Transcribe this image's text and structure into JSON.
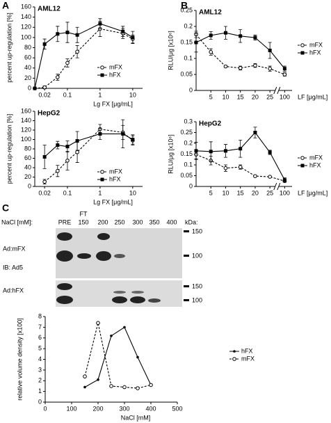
{
  "figure": {
    "panel_labels": [
      "A",
      "B",
      "C"
    ],
    "blot": {
      "nacl_label": "NaCl [mM]:",
      "ft_label": "FT",
      "lanes": [
        "PRE",
        "150",
        "200",
        "250",
        "300",
        "350",
        "400"
      ],
      "kda_label": "kDa:",
      "row_labels": [
        "Ad:mFX",
        "IB: Ad5",
        "Ad:hFX"
      ],
      "kda_markers": [
        "150",
        "100",
        "150",
        "100"
      ]
    }
  },
  "chart_data": [
    {
      "type": "line",
      "title": "AML12",
      "ylabel": "percent up-regulation [%]",
      "xlabel": "Lg FX [μg/mL]",
      "xscale": "log",
      "x": [
        0.01,
        0.02,
        0.05,
        0.1,
        0.2,
        1,
        5,
        10
      ],
      "xlim": [
        0.01,
        20
      ],
      "xticks": [
        0.02,
        0.1,
        1,
        10
      ],
      "ylim": [
        0,
        160
      ],
      "yticks": [
        0,
        20,
        40,
        60,
        80,
        100,
        120,
        140,
        160
      ],
      "legend": "right",
      "series": [
        {
          "name": "mFX",
          "color": "#000000",
          "marker": "circle-open",
          "dashed": true,
          "values": [
            0,
            2,
            22,
            50,
            72,
            117,
            108,
            97
          ],
          "errors": [
            2,
            3,
            6,
            8,
            12,
            15,
            10,
            8
          ]
        },
        {
          "name": "hFX",
          "color": "#000000",
          "marker": "square",
          "dashed": false,
          "values": [
            0,
            87,
            107,
            110,
            105,
            127,
            112,
            100
          ],
          "errors": [
            2,
            10,
            15,
            20,
            15,
            10,
            10,
            12
          ]
        }
      ]
    },
    {
      "type": "line",
      "title": "HepG2",
      "ylabel": "percent up-regulation [%]",
      "xlabel": "Lg FX [μg/mL]",
      "xscale": "log",
      "x": [
        0.02,
        0.05,
        0.1,
        0.2,
        1,
        5,
        10
      ],
      "xlim": [
        0.01,
        20
      ],
      "xticks": [
        0.02,
        0.1,
        1,
        10
      ],
      "ylim": [
        0,
        160
      ],
      "yticks": [
        0,
        20,
        40,
        60,
        80,
        100,
        120,
        140,
        160
      ],
      "legend": "right",
      "series": [
        {
          "name": "mFX",
          "color": "#000000",
          "marker": "circle-open",
          "dashed": true,
          "values": [
            10,
            33,
            55,
            73,
            122,
            115,
            98
          ],
          "errors": [
            5,
            12,
            20,
            22,
            10,
            15,
            10
          ]
        },
        {
          "name": "hFX",
          "color": "#000000",
          "marker": "square",
          "dashed": false,
          "values": [
            63,
            88,
            85,
            97,
            112,
            112,
            100
          ],
          "errors": [
            25,
            8,
            12,
            20,
            12,
            30,
            10
          ]
        }
      ]
    },
    {
      "type": "line",
      "title": "AML12",
      "ylabel": "RLU/μg [x10⁶]",
      "xlabel": "LF [μg/mL]",
      "xscale": "category",
      "axis_break": true,
      "categories": [
        null,
        "5",
        "10",
        "15",
        "20",
        "25",
        "100"
      ],
      "ylim": [
        0,
        0.25
      ],
      "yticks": [
        0,
        0.05,
        0.1,
        0.15,
        0.2,
        0.25
      ],
      "legend": "right",
      "series": [
        {
          "name": "mFX",
          "color": "#000000",
          "marker": "circle-open",
          "dashed": true,
          "values": [
            0.175,
            0.12,
            0.075,
            0.07,
            0.078,
            0.068,
            0.05
          ],
          "errors": [
            0.01,
            0.01,
            0.003,
            0.006,
            0.006,
            0.008,
            0.005
          ]
        },
        {
          "name": "hFX",
          "color": "#000000",
          "marker": "square",
          "dashed": false,
          "values": [
            0.15,
            0.172,
            0.18,
            0.17,
            0.165,
            0.125,
            0.068
          ],
          "errors": [
            0.03,
            0.012,
            0.02,
            0.02,
            0.008,
            0.025,
            0.008
          ]
        }
      ]
    },
    {
      "type": "line",
      "title": "HepG2",
      "ylabel": "RLU/μg [x10⁶]",
      "xlabel": "LF [μg/mL]",
      "xscale": "category",
      "axis_break": true,
      "categories": [
        null,
        "5",
        "10",
        "15",
        "20",
        "25",
        "100"
      ],
      "ylim": [
        0,
        0.3
      ],
      "yticks": [
        0,
        0.05,
        0.1,
        0.15,
        0.2,
        0.25,
        0.3
      ],
      "legend": "right",
      "series": [
        {
          "name": "mFX",
          "color": "#000000",
          "marker": "circle-open",
          "dashed": true,
          "values": [
            0.148,
            0.12,
            0.085,
            0.09,
            0.048,
            0.045,
            0.025
          ],
          "errors": [
            0.02,
            0.02,
            0.015,
            0.01,
            0.003,
            0.003,
            0.005
          ]
        },
        {
          "name": "hFX",
          "color": "#000000",
          "marker": "square",
          "dashed": false,
          "values": [
            0.165,
            0.162,
            0.165,
            0.175,
            0.25,
            0.158,
            0.03
          ],
          "errors": [
            0.04,
            0.045,
            0.03,
            0.04,
            0.025,
            0.01,
            0.01
          ]
        }
      ]
    },
    {
      "type": "line",
      "ylabel": "relative volume density [x100]",
      "xlabel": "NaCl [mM]",
      "xscale": "linear",
      "x": [
        150,
        200,
        250,
        300,
        350,
        400
      ],
      "xlim": [
        0,
        500
      ],
      "xticks": [
        0,
        100,
        200,
        300,
        400,
        500
      ],
      "ylim": [
        0,
        8
      ],
      "yticks": [
        0,
        1,
        2,
        3,
        4,
        5,
        6,
        7,
        8
      ],
      "legend": "right",
      "series": [
        {
          "name": "hFX",
          "color": "#000000",
          "marker": "dot",
          "dashed": false,
          "values": [
            1.4,
            2.1,
            6.2,
            7.0,
            4.2,
            1.6
          ]
        },
        {
          "name": "mFX",
          "color": "#000000",
          "marker": "circle-open",
          "dashed": true,
          "values": [
            2.4,
            7.4,
            1.5,
            1.4,
            1.3,
            1.6
          ]
        }
      ]
    }
  ]
}
